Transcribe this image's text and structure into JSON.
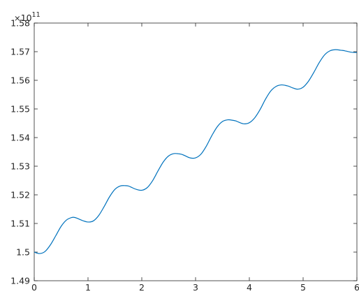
{
  "chart_data": {
    "type": "line",
    "title": "",
    "xlabel": "",
    "ylabel": "",
    "xlim": [
      0,
      6
    ],
    "ylim": [
      1.49,
      1.58
    ],
    "y_scale_factor": {
      "base": "10",
      "exponent": "11"
    },
    "xticks": [
      0,
      1,
      2,
      3,
      4,
      5,
      6
    ],
    "xtick_labels": [
      "0",
      "1",
      "2",
      "3",
      "4",
      "5",
      "6"
    ],
    "yticks": [
      1.49,
      1.5,
      1.51,
      1.52,
      1.53,
      1.54,
      1.55,
      1.56,
      1.57,
      1.58
    ],
    "ytick_labels": [
      "1.49",
      "1.5",
      "1.51",
      "1.52",
      "1.53",
      "1.54",
      "1.55",
      "1.56",
      "1.57",
      "1.58"
    ],
    "grid": false,
    "series": [
      {
        "color": "#0072bd",
        "x": [
          0,
          0.1,
          0.2,
          0.3,
          0.4,
          0.5,
          0.6,
          0.7,
          0.75,
          0.8,
          0.9,
          1.0,
          1.1,
          1.2,
          1.3,
          1.4,
          1.5,
          1.6,
          1.7,
          1.75,
          1.8,
          1.9,
          2.0,
          2.1,
          2.2,
          2.3,
          2.4,
          2.5,
          2.6,
          2.7,
          2.75,
          2.8,
          2.9,
          3.0,
          3.1,
          3.2,
          3.3,
          3.4,
          3.5,
          3.6,
          3.7,
          3.75,
          3.8,
          3.9,
          4.0,
          4.1,
          4.2,
          4.3,
          4.4,
          4.5,
          4.6,
          4.7,
          4.75,
          4.8,
          4.9,
          5.0,
          5.1,
          5.2,
          5.3,
          5.4,
          5.5,
          5.6,
          5.7,
          5.75,
          5.8,
          5.9,
          6.0
        ],
        "values": [
          1.5,
          1.4995,
          1.5002,
          1.5025,
          1.5057,
          1.509,
          1.5112,
          1.5121,
          1.5121,
          1.5118,
          1.511,
          1.5105,
          1.5109,
          1.5128,
          1.5159,
          1.5193,
          1.5219,
          1.5231,
          1.5232,
          1.5231,
          1.5227,
          1.5219,
          1.5216,
          1.5225,
          1.5249,
          1.5283,
          1.5315,
          1.5336,
          1.5344,
          1.5343,
          1.5341,
          1.5337,
          1.5329,
          1.5329,
          1.5342,
          1.537,
          1.5406,
          1.5437,
          1.5456,
          1.5462,
          1.546,
          1.5458,
          1.5454,
          1.5448,
          1.5452,
          1.5469,
          1.5498,
          1.5534,
          1.5563,
          1.5579,
          1.5584,
          1.5581,
          1.5578,
          1.5574,
          1.5569,
          1.5576,
          1.5597,
          1.5628,
          1.5662,
          1.5689,
          1.5703,
          1.5707,
          1.5705,
          1.5704,
          1.5702,
          1.5698,
          1.5697
        ]
      }
    ]
  }
}
